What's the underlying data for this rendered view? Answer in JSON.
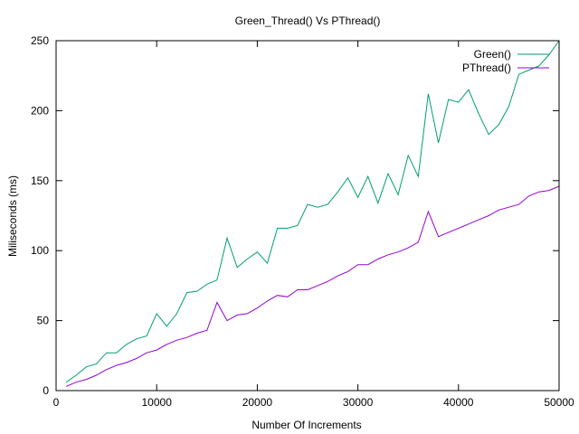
{
  "chart_data": {
    "type": "line",
    "title": "Green_Thread() Vs PThread()",
    "xlabel": "Number Of Increments",
    "ylabel": "Miliseconds (ms)",
    "xlim": [
      0,
      50000
    ],
    "ylim": [
      0,
      250
    ],
    "xticks": [
      0,
      10000,
      20000,
      30000,
      40000,
      50000
    ],
    "yticks": [
      0,
      50,
      100,
      150,
      200,
      250
    ],
    "grid": false,
    "legend_position": "top-right",
    "series": [
      {
        "name": "Green()",
        "color": "#009e73",
        "points": [
          [
            1000,
            6
          ],
          [
            2000,
            11
          ],
          [
            3000,
            17
          ],
          [
            4000,
            19
          ],
          [
            5000,
            27
          ],
          [
            6000,
            27
          ],
          [
            7000,
            33
          ],
          [
            8000,
            37
          ],
          [
            9000,
            39
          ],
          [
            10000,
            55
          ],
          [
            11000,
            46
          ],
          [
            12000,
            55
          ],
          [
            13000,
            70
          ],
          [
            14000,
            71
          ],
          [
            15000,
            76
          ],
          [
            16000,
            79
          ],
          [
            17000,
            109
          ],
          [
            18000,
            88
          ],
          [
            19000,
            94
          ],
          [
            20000,
            99
          ],
          [
            21000,
            91
          ],
          [
            22000,
            116
          ],
          [
            23000,
            116
          ],
          [
            24000,
            118
          ],
          [
            25000,
            133
          ],
          [
            26000,
            131
          ],
          [
            27000,
            133
          ],
          [
            28000,
            142
          ],
          [
            29000,
            152
          ],
          [
            30000,
            138
          ],
          [
            31000,
            153
          ],
          [
            32000,
            134
          ],
          [
            33000,
            155
          ],
          [
            34000,
            140
          ],
          [
            35000,
            168
          ],
          [
            36000,
            153
          ],
          [
            37000,
            212
          ],
          [
            38000,
            177
          ],
          [
            39000,
            208
          ],
          [
            40000,
            206
          ],
          [
            41000,
            215
          ],
          [
            42000,
            198
          ],
          [
            43000,
            183
          ],
          [
            44000,
            190
          ],
          [
            45000,
            203
          ],
          [
            46000,
            226
          ],
          [
            47000,
            229
          ],
          [
            48000,
            232
          ],
          [
            49000,
            240
          ],
          [
            50000,
            250
          ]
        ]
      },
      {
        "name": "PThread()",
        "color": "#9400d3",
        "points": [
          [
            1000,
            3
          ],
          [
            2000,
            6
          ],
          [
            3000,
            8
          ],
          [
            4000,
            11
          ],
          [
            5000,
            15
          ],
          [
            6000,
            18
          ],
          [
            7000,
            20
          ],
          [
            8000,
            23
          ],
          [
            9000,
            27
          ],
          [
            10000,
            29
          ],
          [
            11000,
            33
          ],
          [
            12000,
            36
          ],
          [
            13000,
            38
          ],
          [
            14000,
            41
          ],
          [
            15000,
            43
          ],
          [
            16000,
            63
          ],
          [
            17000,
            50
          ],
          [
            18000,
            54
          ],
          [
            19000,
            55
          ],
          [
            20000,
            59
          ],
          [
            21000,
            64
          ],
          [
            22000,
            68
          ],
          [
            23000,
            67
          ],
          [
            24000,
            72
          ],
          [
            25000,
            72
          ],
          [
            26000,
            75
          ],
          [
            27000,
            78
          ],
          [
            28000,
            82
          ],
          [
            29000,
            85
          ],
          [
            30000,
            90
          ],
          [
            31000,
            90
          ],
          [
            32000,
            94
          ],
          [
            33000,
            97
          ],
          [
            34000,
            99
          ],
          [
            35000,
            102
          ],
          [
            36000,
            106
          ],
          [
            37000,
            128
          ],
          [
            38000,
            110
          ],
          [
            39000,
            113
          ],
          [
            40000,
            116
          ],
          [
            41000,
            119
          ],
          [
            42000,
            122
          ],
          [
            43000,
            125
          ],
          [
            44000,
            129
          ],
          [
            45000,
            131
          ],
          [
            46000,
            133
          ],
          [
            47000,
            139
          ],
          [
            48000,
            142
          ],
          [
            49000,
            143
          ],
          [
            50000,
            146
          ]
        ]
      }
    ]
  }
}
